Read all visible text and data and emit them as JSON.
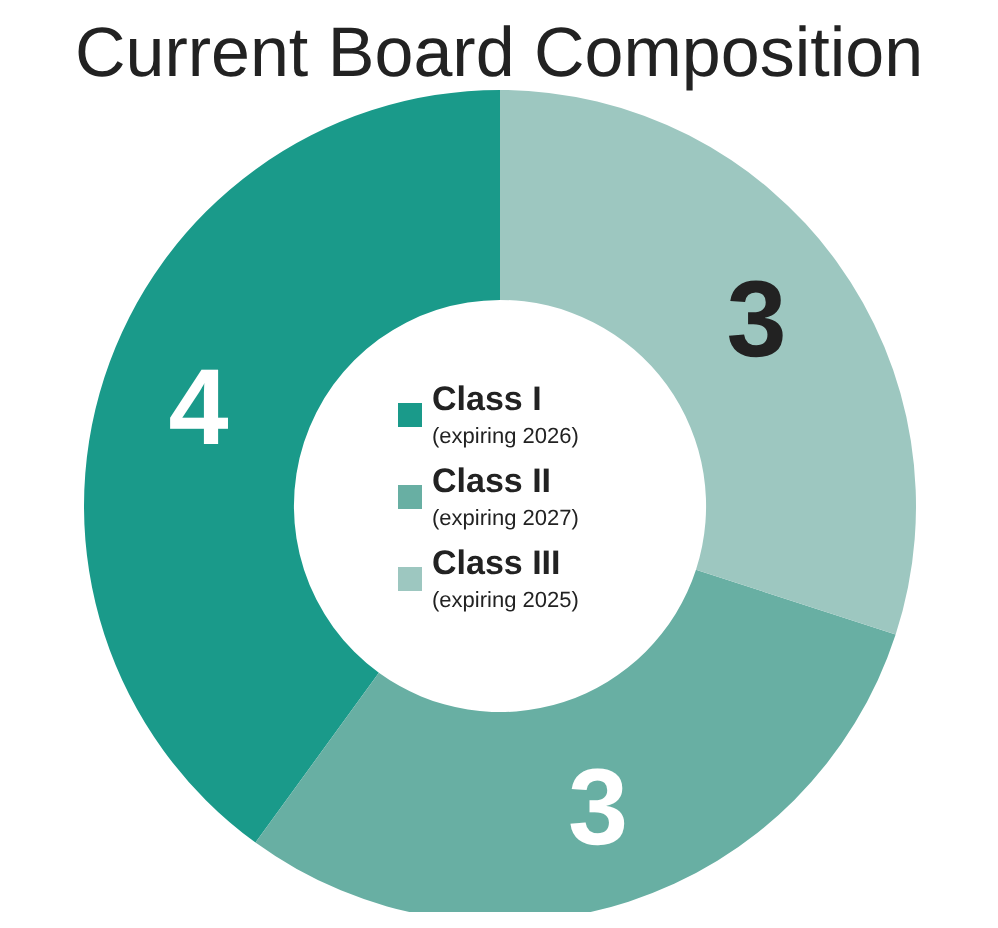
{
  "chart_data": {
    "type": "donut",
    "title": "Current Board Composition",
    "categories": [
      "Class I",
      "Class II",
      "Class III"
    ],
    "values": [
      4,
      3,
      3
    ],
    "colors": [
      "#1a9a8a",
      "#68afa3",
      "#9dc7c0"
    ],
    "annotations": [
      "(expiring 2026)",
      "(expiring 2027)",
      "(expiring 2025)"
    ],
    "data_labels": true,
    "legend": "center"
  }
}
